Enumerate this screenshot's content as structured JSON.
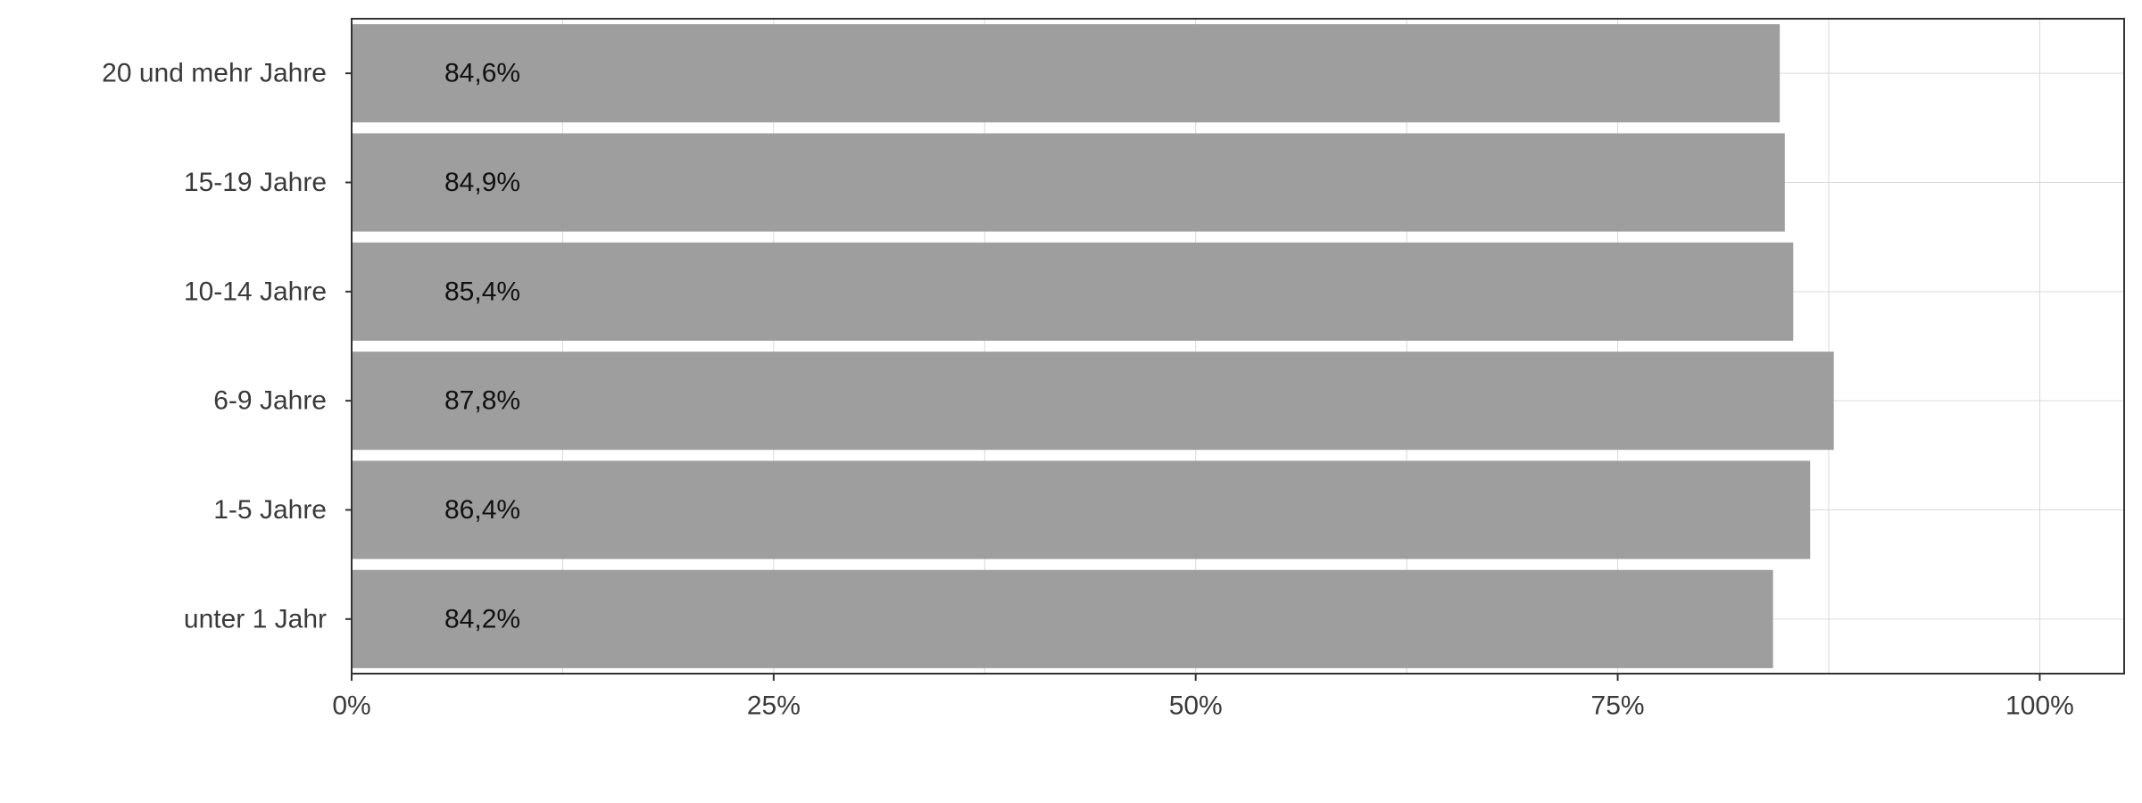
{
  "chart_data": {
    "type": "bar",
    "orientation": "horizontal",
    "categories": [
      "20 und mehr Jahre",
      "15-19 Jahre",
      "10-14 Jahre",
      "6-9 Jahre",
      "1-5 Jahre",
      "unter 1 Jahr"
    ],
    "values": [
      84.6,
      84.9,
      85.4,
      87.8,
      86.4,
      84.2
    ],
    "data_labels": [
      "84,6%",
      "84,9%",
      "85,4%",
      "87,8%",
      "86,4%",
      "84,2%"
    ],
    "x_ticks": [
      0,
      25,
      50,
      75,
      100
    ],
    "x_tick_labels": [
      "0%",
      "25%",
      "50%",
      "75%",
      "100%"
    ],
    "xlim": [
      0,
      105
    ],
    "grid": true,
    "bar_color": "#9b9b9b",
    "grid_color": "#d9d9d9",
    "title": "",
    "xlabel": "",
    "ylabel": ""
  }
}
